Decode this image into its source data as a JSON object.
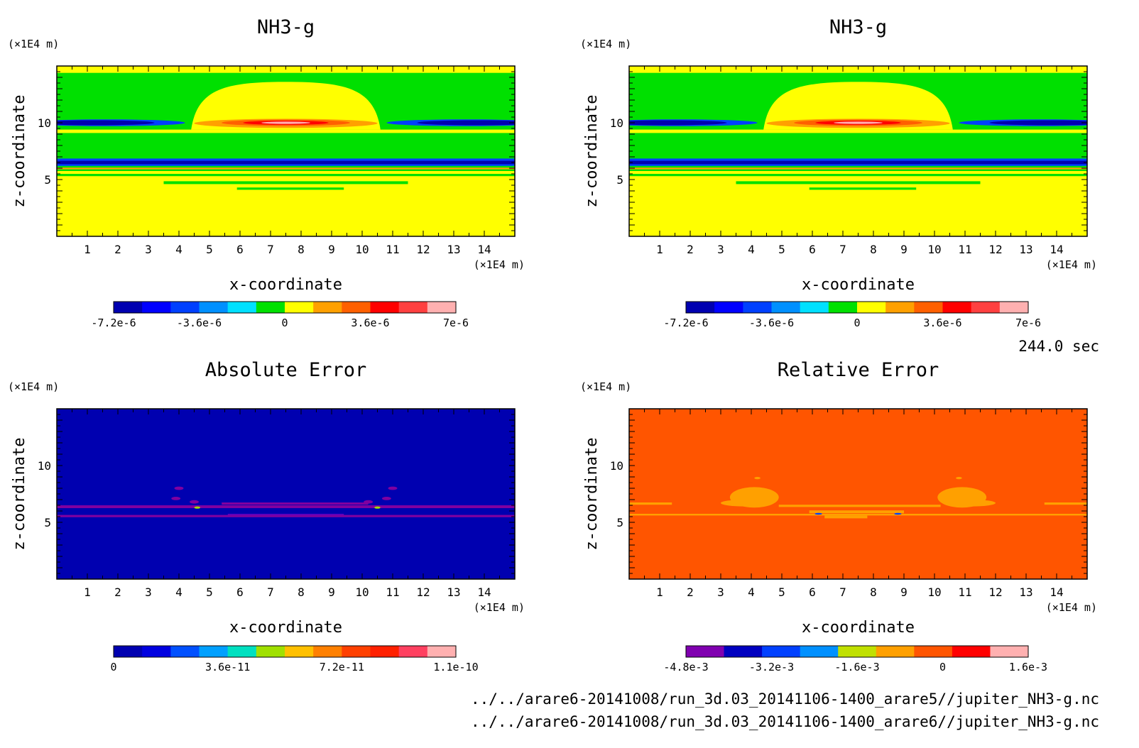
{
  "colors": {
    "rainbow": [
      "#0000b0",
      "#0000ff",
      "#0040ff",
      "#0090ff",
      "#00e0ff",
      "#00e000",
      "#ffff00",
      "#ffa000",
      "#ff6000",
      "#ff0000",
      "#ff4040",
      "#ffb0b0"
    ],
    "abs_error": [
      "#0000b0",
      "#0000e0",
      "#0050ff",
      "#00a0ff",
      "#00e0c0",
      "#a0e000",
      "#ffc000",
      "#ff8000",
      "#ff4000",
      "#ff2000",
      "#ff4060",
      "#ffb0b0"
    ],
    "rel_error": [
      "#8000b0",
      "#0000c0",
      "#0040ff",
      "#0090ff",
      "#c0e000",
      "#ffa000",
      "#ff5500",
      "#ff0000",
      "#ffb0b0"
    ]
  },
  "footer": {
    "time": "244.0 sec",
    "file1": "../../arare6-20141008/run_3d.03_20141106-1400_arare5//jupiter_NH3-g.nc",
    "file2": "../../arare6-20141008/run_3d.03_20141106-1400_arare6//jupiter_NH3-g.nc"
  },
  "chart_data": [
    {
      "type": "heatmap",
      "title": "NH3-g",
      "xlabel": "x-coordinate",
      "ylabel": "z-coordinate",
      "x_unit": "(×1E4 m)",
      "y_unit": "(×1E4 m)",
      "x_ticks": [
        "1",
        "2",
        "3",
        "4",
        "5",
        "6",
        "7",
        "8",
        "9",
        "10",
        "11",
        "12",
        "13",
        "14"
      ],
      "y_ticks": [
        "5",
        "10"
      ],
      "xlim": [
        0,
        15
      ],
      "ylim": [
        0,
        15
      ],
      "colorbar_ticks": [
        "-7.2e-6",
        "-3.6e-6",
        "0",
        "3.6e-6",
        "7e-6"
      ],
      "background_value": 0
    },
    {
      "type": "heatmap",
      "title": "NH3-g",
      "xlabel": "x-coordinate",
      "ylabel": "z-coordinate",
      "x_unit": "(×1E4 m)",
      "y_unit": "(×1E4 m)",
      "x_ticks": [
        "1",
        "2",
        "3",
        "4",
        "5",
        "6",
        "7",
        "8",
        "9",
        "10",
        "11",
        "12",
        "13",
        "14"
      ],
      "y_ticks": [
        "5",
        "10"
      ],
      "xlim": [
        0,
        15
      ],
      "ylim": [
        0,
        15
      ],
      "colorbar_ticks": [
        "-7.2e-6",
        "-3.6e-6",
        "0",
        "3.6e-6",
        "7e-6"
      ],
      "background_value": 0
    },
    {
      "type": "heatmap",
      "title": "Absolute Error",
      "xlabel": "x-coordinate",
      "ylabel": "z-coordinate",
      "x_unit": "(×1E4 m)",
      "y_unit": "(×1E4 m)",
      "x_ticks": [
        "1",
        "2",
        "3",
        "4",
        "5",
        "6",
        "7",
        "8",
        "9",
        "10",
        "11",
        "12",
        "13",
        "14"
      ],
      "y_ticks": [
        "5",
        "10"
      ],
      "xlim": [
        0,
        15
      ],
      "ylim": [
        0,
        15
      ],
      "colorbar_ticks": [
        "0",
        "3.6e-11",
        "7.2e-11",
        "1.1e-10"
      ],
      "background_value": 0
    },
    {
      "type": "heatmap",
      "title": "Relative Error",
      "xlabel": "x-coordinate",
      "ylabel": "z-coordinate",
      "x_unit": "(×1E4 m)",
      "y_unit": "(×1E4 m)",
      "x_ticks": [
        "1",
        "2",
        "3",
        "4",
        "5",
        "6",
        "7",
        "8",
        "9",
        "10",
        "11",
        "12",
        "13",
        "14"
      ],
      "y_ticks": [
        "5",
        "10"
      ],
      "xlim": [
        0,
        15
      ],
      "ylim": [
        0,
        15
      ],
      "colorbar_ticks": [
        "-4.8e-3",
        "-3.2e-3",
        "-1.6e-3",
        "0",
        "1.6e-3"
      ],
      "background_value": 0
    }
  ]
}
